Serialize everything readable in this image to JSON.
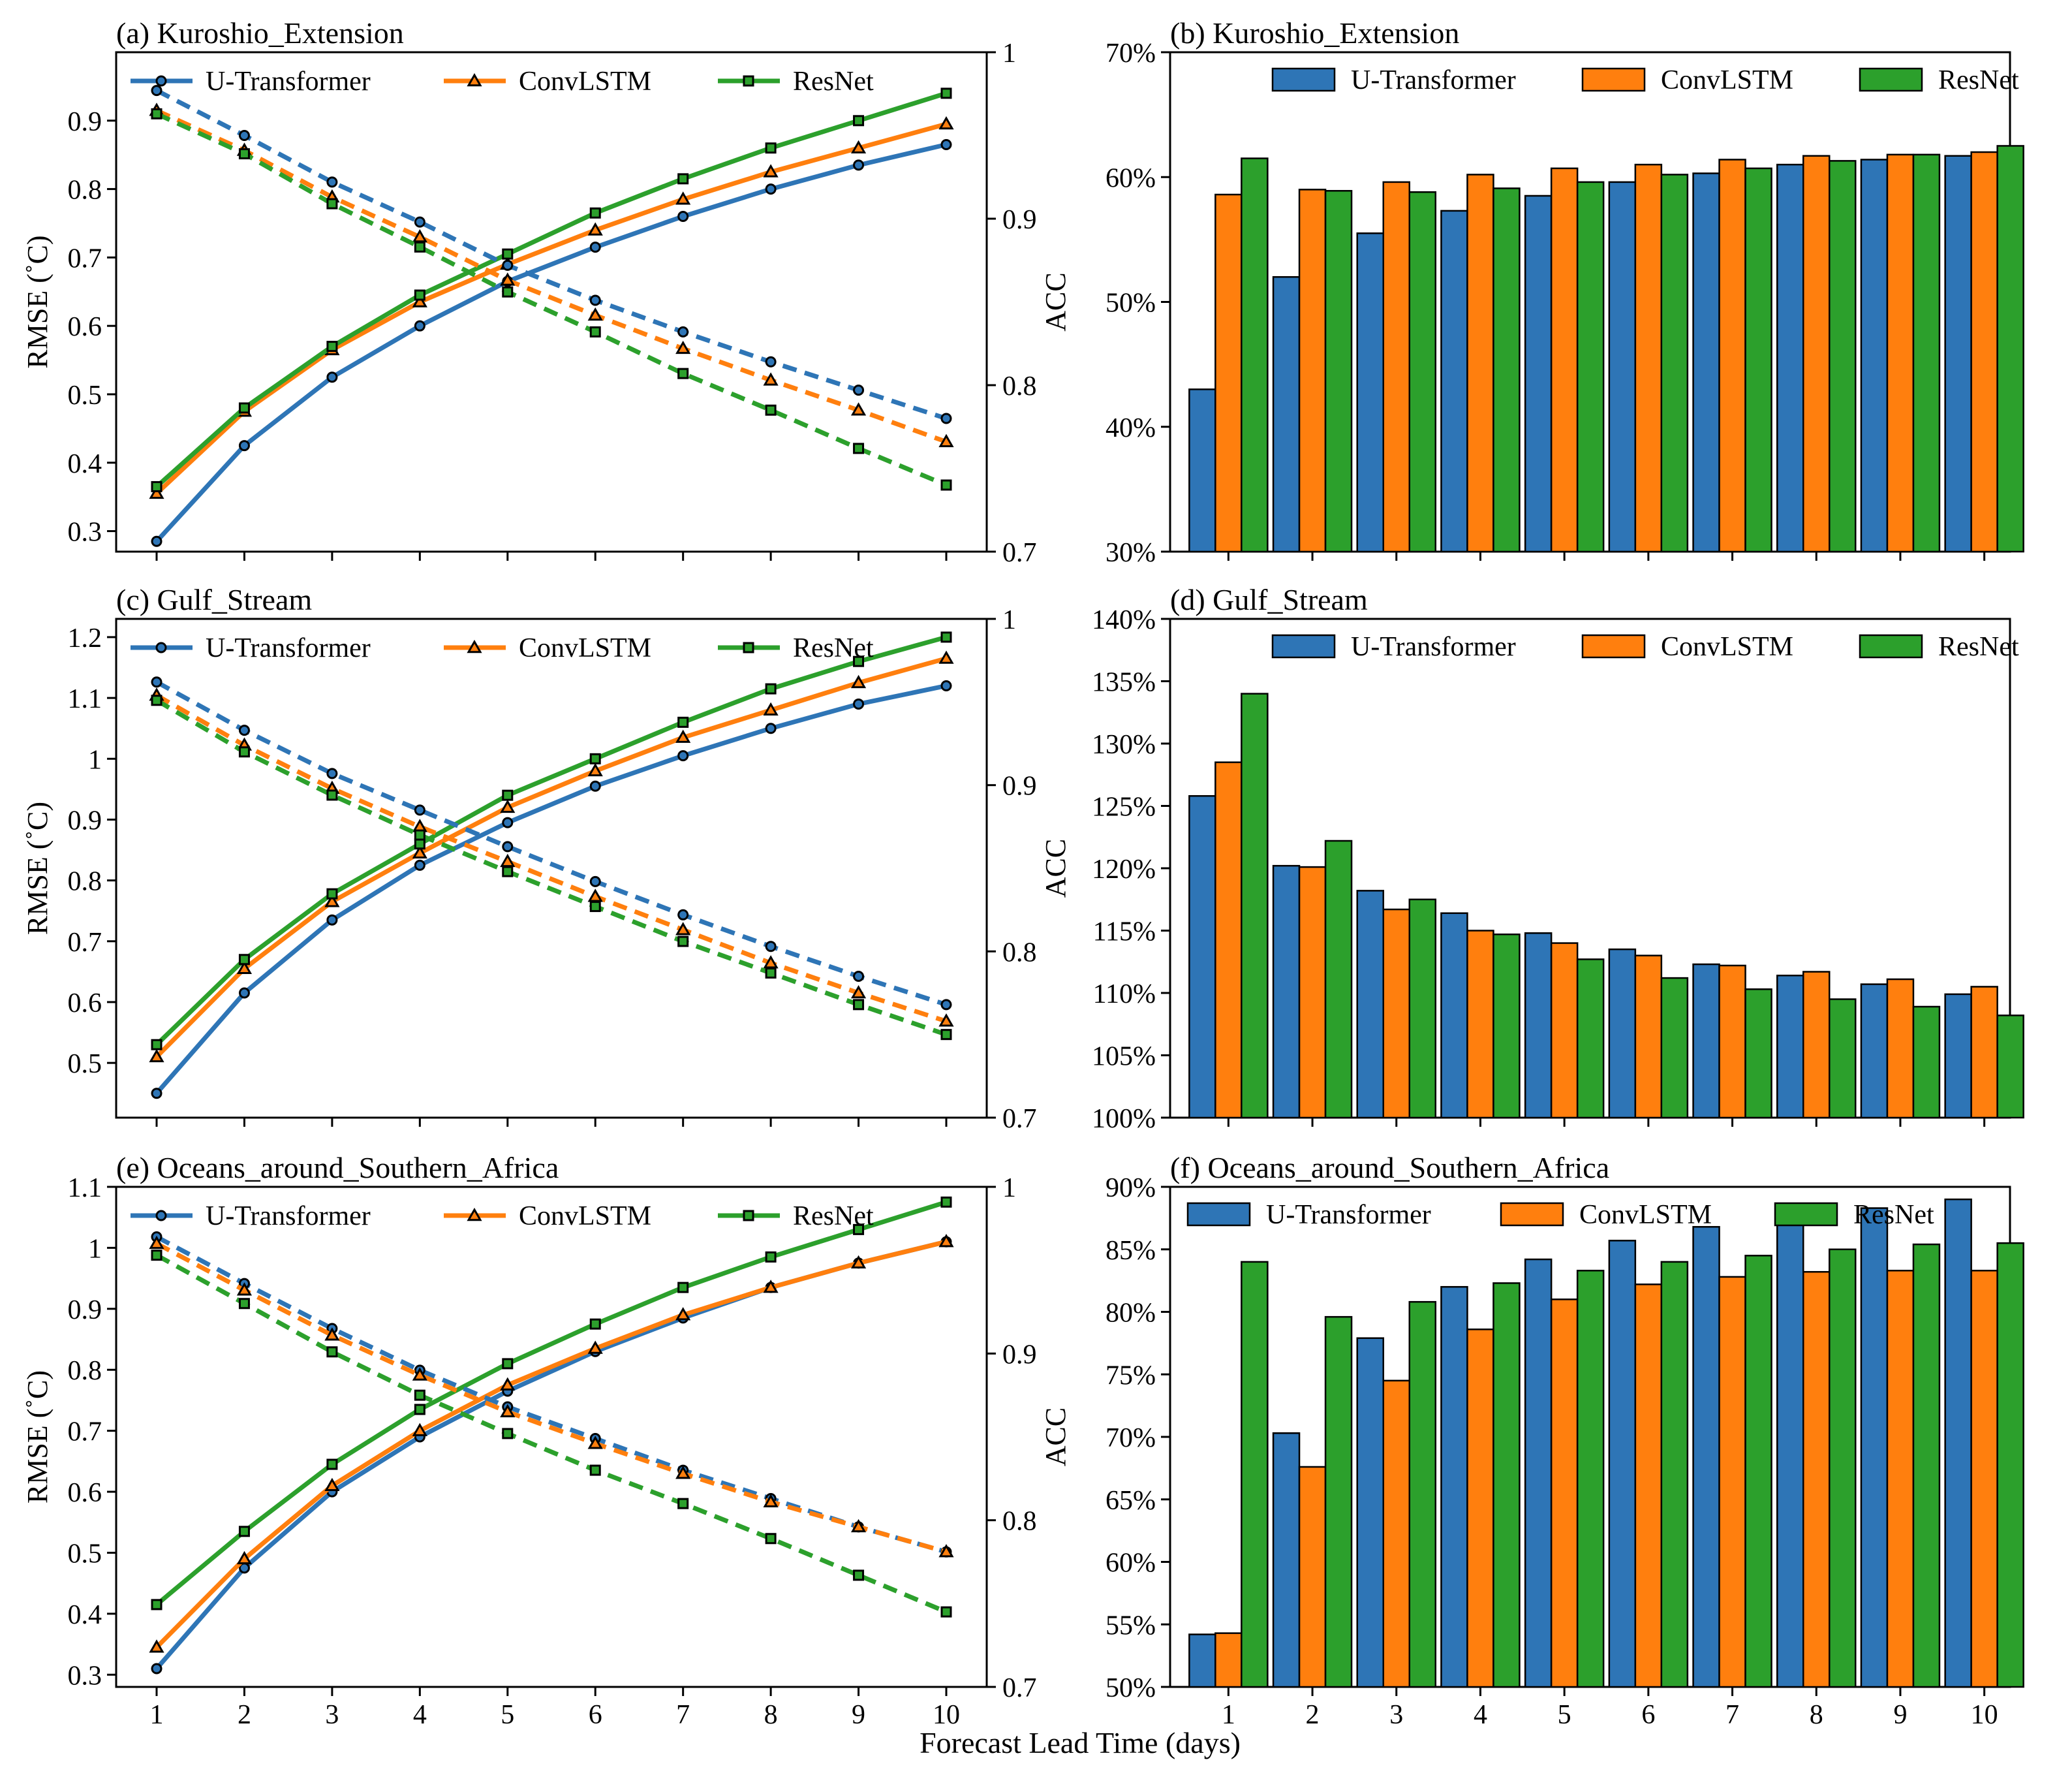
{
  "figure": {
    "shared_xlabel": "Forecast Lead Time (days)",
    "x_ticks": [
      "1",
      "2",
      "3",
      "4",
      "5",
      "6",
      "7",
      "8",
      "9",
      "10"
    ]
  },
  "colors": {
    "U-Transformer": "#2e75b6",
    "ConvLSTM": "#ff7f0e",
    "ResNet": "#2ca02c"
  },
  "chart_data": [
    {
      "type": "line",
      "title": "(a) Kuroshio_Extension",
      "xlabel": "",
      "ylabel": "RMSE (˚C)",
      "y2label": "ACC",
      "x": [
        1,
        2,
        3,
        4,
        5,
        6,
        7,
        8,
        9,
        10
      ],
      "ylim": [
        0.27,
        1.0
      ],
      "yticks": [
        0.3,
        0.4,
        0.5,
        0.6,
        0.7,
        0.8,
        0.9
      ],
      "ytick_labels": [
        "0.3",
        "0.4",
        "0.5",
        "0.6",
        "0.7",
        "0.8",
        "0.9"
      ],
      "y2lim": [
        0.7,
        1.0
      ],
      "y2ticks": [
        0.7,
        0.8,
        0.9,
        1.0
      ],
      "y2tick_labels": [
        "0.7",
        "0.8",
        "0.9",
        "1"
      ],
      "legend": [
        "U-Transformer",
        "ConvLSTM",
        "ResNet"
      ],
      "series": [
        {
          "name": "U-Transformer",
          "metric": "RMSE",
          "axis": "left",
          "style": "solid",
          "marker": "circle",
          "values": [
            0.285,
            0.425,
            0.525,
            0.6,
            0.665,
            0.715,
            0.76,
            0.8,
            0.835,
            0.865
          ]
        },
        {
          "name": "ConvLSTM",
          "metric": "RMSE",
          "axis": "left",
          "style": "solid",
          "marker": "triangle",
          "values": [
            0.355,
            0.475,
            0.565,
            0.635,
            0.69,
            0.74,
            0.785,
            0.825,
            0.86,
            0.895
          ]
        },
        {
          "name": "ResNet",
          "metric": "RMSE",
          "axis": "left",
          "style": "solid",
          "marker": "square",
          "values": [
            0.365,
            0.48,
            0.57,
            0.645,
            0.705,
            0.765,
            0.815,
            0.86,
            0.9,
            0.94
          ]
        },
        {
          "name": "U-Transformer",
          "metric": "ACC",
          "axis": "right",
          "style": "dashed",
          "marker": "circle",
          "values": [
            0.977,
            0.95,
            0.922,
            0.898,
            0.872,
            0.851,
            0.832,
            0.814,
            0.797,
            0.78
          ]
        },
        {
          "name": "ConvLSTM",
          "metric": "ACC",
          "axis": "right",
          "style": "dashed",
          "marker": "triangle",
          "values": [
            0.965,
            0.941,
            0.913,
            0.889,
            0.863,
            0.842,
            0.822,
            0.803,
            0.785,
            0.766
          ]
        },
        {
          "name": "ResNet",
          "metric": "ACC",
          "axis": "right",
          "style": "dashed",
          "marker": "square",
          "values": [
            0.963,
            0.939,
            0.909,
            0.883,
            0.856,
            0.832,
            0.807,
            0.785,
            0.762,
            0.74
          ]
        }
      ]
    },
    {
      "type": "bar",
      "title": "(b) Kuroshio_Extension",
      "xlabel": "",
      "ylabel": "",
      "categories": [
        "1",
        "2",
        "3",
        "4",
        "5",
        "6",
        "7",
        "8",
        "9",
        "10"
      ],
      "ylim": [
        30,
        70
      ],
      "yticks": [
        30,
        40,
        50,
        60,
        70
      ],
      "ytick_labels": [
        "30%",
        "40%",
        "50%",
        "60%",
        "70%"
      ],
      "legend": [
        "U-Transformer",
        "ConvLSTM",
        "ResNet"
      ],
      "series": [
        {
          "name": "U-Transformer",
          "values": [
            43.0,
            52.0,
            55.5,
            57.3,
            58.5,
            59.6,
            60.3,
            61.0,
            61.4,
            61.7
          ]
        },
        {
          "name": "ConvLSTM",
          "values": [
            58.6,
            59.0,
            59.6,
            60.2,
            60.7,
            61.0,
            61.4,
            61.7,
            61.8,
            62.0
          ]
        },
        {
          "name": "ResNet",
          "values": [
            61.5,
            58.9,
            58.8,
            59.1,
            59.6,
            60.2,
            60.7,
            61.3,
            61.8,
            62.5
          ]
        }
      ]
    },
    {
      "type": "line",
      "title": "(c) Gulf_Stream",
      "xlabel": "",
      "ylabel": "RMSE (˚C)",
      "y2label": "ACC",
      "x": [
        1,
        2,
        3,
        4,
        5,
        6,
        7,
        8,
        9,
        10
      ],
      "ylim": [
        0.41,
        1.23
      ],
      "yticks": [
        0.5,
        0.6,
        0.7,
        0.8,
        0.9,
        1.0,
        1.1,
        1.2
      ],
      "ytick_labels": [
        "0.5",
        "0.6",
        "0.7",
        "0.8",
        "0.9",
        "1",
        "1.1",
        "1.2"
      ],
      "y2lim": [
        0.7,
        1.0
      ],
      "y2ticks": [
        0.7,
        0.8,
        0.9,
        1.0
      ],
      "y2tick_labels": [
        "0.7",
        "0.8",
        "0.9",
        "1"
      ],
      "legend": [
        "U-Transformer",
        "ConvLSTM",
        "ResNet"
      ],
      "series": [
        {
          "name": "U-Transformer",
          "metric": "RMSE",
          "axis": "left",
          "style": "solid",
          "marker": "circle",
          "values": [
            0.45,
            0.615,
            0.735,
            0.825,
            0.895,
            0.955,
            1.005,
            1.05,
            1.09,
            1.12
          ]
        },
        {
          "name": "ConvLSTM",
          "metric": "RMSE",
          "axis": "left",
          "style": "solid",
          "marker": "triangle",
          "values": [
            0.51,
            0.655,
            0.765,
            0.845,
            0.92,
            0.98,
            1.035,
            1.08,
            1.125,
            1.165
          ]
        },
        {
          "name": "ResNet",
          "metric": "RMSE",
          "axis": "left",
          "style": "solid",
          "marker": "square",
          "values": [
            0.53,
            0.67,
            0.778,
            0.86,
            0.94,
            1.0,
            1.06,
            1.115,
            1.16,
            1.2
          ]
        },
        {
          "name": "U-Transformer",
          "metric": "ACC",
          "axis": "right",
          "style": "dashed",
          "marker": "circle",
          "values": [
            0.962,
            0.933,
            0.907,
            0.885,
            0.863,
            0.842,
            0.822,
            0.803,
            0.785,
            0.768
          ]
        },
        {
          "name": "ConvLSTM",
          "metric": "ACC",
          "axis": "right",
          "style": "dashed",
          "marker": "triangle",
          "values": [
            0.954,
            0.924,
            0.898,
            0.875,
            0.854,
            0.833,
            0.813,
            0.793,
            0.775,
            0.758
          ]
        },
        {
          "name": "ResNet",
          "metric": "ACC",
          "axis": "right",
          "style": "dashed",
          "marker": "square",
          "values": [
            0.951,
            0.92,
            0.894,
            0.87,
            0.848,
            0.827,
            0.806,
            0.787,
            0.768,
            0.75
          ]
        }
      ]
    },
    {
      "type": "bar",
      "title": "(d) Gulf_Stream",
      "xlabel": "",
      "ylabel": "",
      "categories": [
        "1",
        "2",
        "3",
        "4",
        "5",
        "6",
        "7",
        "8",
        "9",
        "10"
      ],
      "ylim": [
        100,
        140
      ],
      "yticks": [
        100,
        105,
        110,
        115,
        120,
        125,
        130,
        135,
        140
      ],
      "ytick_labels": [
        "100%",
        "105%",
        "110%",
        "115%",
        "120%",
        "125%",
        "130%",
        "135%",
        "140%"
      ],
      "legend": [
        "U-Transformer",
        "ConvLSTM",
        "ResNet"
      ],
      "series": [
        {
          "name": "U-Transformer",
          "values": [
            125.8,
            120.2,
            118.2,
            116.4,
            114.8,
            113.5,
            112.3,
            111.4,
            110.7,
            109.9
          ]
        },
        {
          "name": "ConvLSTM",
          "values": [
            128.5,
            120.1,
            116.7,
            115.0,
            114.0,
            113.0,
            112.2,
            111.7,
            111.1,
            110.5
          ]
        },
        {
          "name": "ResNet",
          "values": [
            134.0,
            122.2,
            117.5,
            114.7,
            112.7,
            111.2,
            110.3,
            109.5,
            108.9,
            108.2
          ]
        }
      ]
    },
    {
      "type": "line",
      "title": "(e) Oceans_around_Southern_Africa",
      "xlabel": "Forecast Lead Time (days)",
      "ylabel": "RMSE (˚C)",
      "y2label": "ACC",
      "x": [
        1,
        2,
        3,
        4,
        5,
        6,
        7,
        8,
        9,
        10
      ],
      "ylim": [
        0.28,
        1.1
      ],
      "yticks": [
        0.3,
        0.4,
        0.5,
        0.6,
        0.7,
        0.8,
        0.9,
        1.0,
        1.1
      ],
      "ytick_labels": [
        "0.3",
        "0.4",
        "0.5",
        "0.6",
        "0.7",
        "0.8",
        "0.9",
        "1",
        "1.1"
      ],
      "y2lim": [
        0.7,
        1.0
      ],
      "y2ticks": [
        0.7,
        0.8,
        0.9,
        1.0
      ],
      "y2tick_labels": [
        "0.7",
        "0.8",
        "0.9",
        "1"
      ],
      "legend": [
        "U-Transformer",
        "ConvLSTM",
        "ResNet"
      ],
      "series": [
        {
          "name": "U-Transformer",
          "metric": "RMSE",
          "axis": "left",
          "style": "solid",
          "marker": "circle",
          "values": [
            0.31,
            0.475,
            0.6,
            0.69,
            0.765,
            0.83,
            0.885,
            0.935,
            0.975,
            1.01
          ]
        },
        {
          "name": "ConvLSTM",
          "metric": "RMSE",
          "axis": "left",
          "style": "solid",
          "marker": "triangle",
          "values": [
            0.345,
            0.49,
            0.61,
            0.7,
            0.775,
            0.835,
            0.89,
            0.935,
            0.975,
            1.01
          ]
        },
        {
          "name": "ResNet",
          "metric": "RMSE",
          "axis": "left",
          "style": "solid",
          "marker": "square",
          "values": [
            0.415,
            0.535,
            0.645,
            0.735,
            0.81,
            0.875,
            0.935,
            0.985,
            1.03,
            1.075
          ]
        },
        {
          "name": "U-Transformer",
          "metric": "ACC",
          "axis": "right",
          "style": "dashed",
          "marker": "circle",
          "values": [
            0.97,
            0.942,
            0.915,
            0.89,
            0.868,
            0.849,
            0.83,
            0.813,
            0.796,
            0.781
          ]
        },
        {
          "name": "ConvLSTM",
          "metric": "ACC",
          "axis": "right",
          "style": "dashed",
          "marker": "triangle",
          "values": [
            0.966,
            0.938,
            0.911,
            0.887,
            0.865,
            0.846,
            0.828,
            0.811,
            0.796,
            0.781
          ]
        },
        {
          "name": "ResNet",
          "metric": "ACC",
          "axis": "right",
          "style": "dashed",
          "marker": "square",
          "values": [
            0.959,
            0.93,
            0.901,
            0.875,
            0.852,
            0.83,
            0.81,
            0.789,
            0.767,
            0.745
          ]
        }
      ]
    },
    {
      "type": "bar",
      "title": "(f) Oceans_around_Southern_Africa",
      "xlabel": "",
      "ylabel": "",
      "categories": [
        "1",
        "2",
        "3",
        "4",
        "5",
        "6",
        "7",
        "8",
        "9",
        "10"
      ],
      "ylim": [
        50,
        90
      ],
      "yticks": [
        50,
        55,
        60,
        65,
        70,
        75,
        80,
        85,
        90
      ],
      "ytick_labels": [
        "50%",
        "55%",
        "60%",
        "65%",
        "70%",
        "75%",
        "80%",
        "85%",
        "90%"
      ],
      "legend": [
        "U-Transformer",
        "ConvLSTM",
        "ResNet"
      ],
      "series": [
        {
          "name": "U-Transformer",
          "values": [
            54.2,
            70.3,
            77.9,
            82.0,
            84.2,
            85.7,
            86.8,
            87.6,
            88.3,
            89.0
          ]
        },
        {
          "name": "ConvLSTM",
          "values": [
            54.3,
            67.6,
            74.5,
            78.6,
            81.0,
            82.2,
            82.8,
            83.2,
            83.3,
            83.3
          ]
        },
        {
          "name": "ResNet",
          "values": [
            84.0,
            79.6,
            80.8,
            82.3,
            83.3,
            84.0,
            84.5,
            85.0,
            85.4,
            85.5
          ]
        }
      ]
    }
  ]
}
